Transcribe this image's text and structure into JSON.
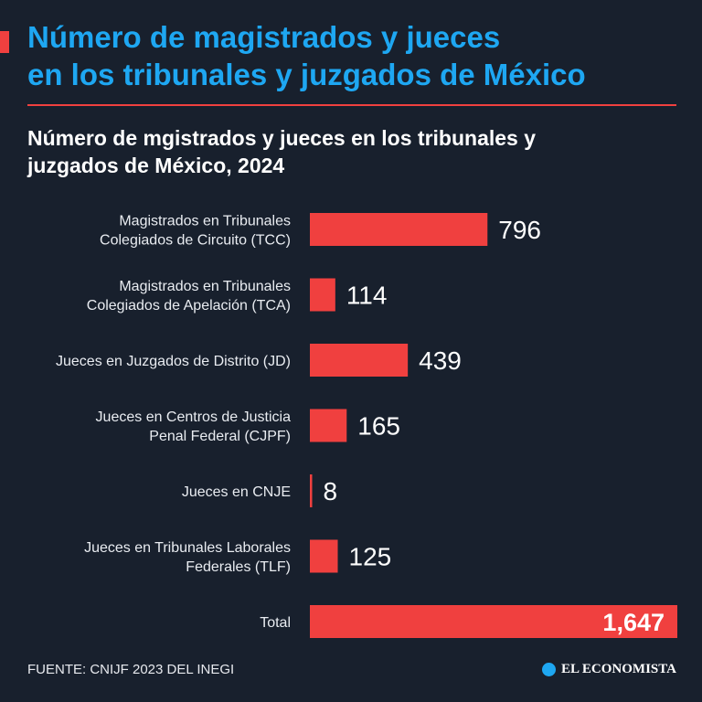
{
  "header": {
    "title_line1": "Número de magistrados y jueces",
    "title_line2": "en los tribunales y juzgados de México",
    "accent_color": "#f0403f",
    "title_color": "#1ea7f2"
  },
  "chart_data": {
    "type": "bar",
    "orientation": "horizontal",
    "title_line1": "Número de mgistrados y jueces en los tribunales y",
    "title_line2": "juzgados de México, 2024",
    "categories": [
      [
        "Magistrados en Tribunales",
        "Colegiados de Circuito (TCC)"
      ],
      [
        "Magistrados en Tribunales",
        "Colegiados de Apelación (TCA)"
      ],
      [
        "Jueces en Juzgados de Distrito (JD)"
      ],
      [
        "Jueces en Centros de Justicia",
        "Penal Federal (CJPF)"
      ],
      [
        "Jueces en CNJE"
      ],
      [
        "Jueces en Tribunales Laborales",
        "Federales (TLF)"
      ],
      [
        "Total"
      ]
    ],
    "values": [
      796,
      114,
      439,
      165,
      8,
      125,
      1647
    ],
    "value_labels": [
      "796",
      "114",
      "439",
      "165",
      "8",
      "125",
      "1,647"
    ],
    "xlim": [
      0,
      1647
    ],
    "bar_color": "#f0403f",
    "grid": false,
    "legend": false
  },
  "footer": {
    "source": "FUENTE: CNIJF 2023 DEL INEGI",
    "brand": "EL ECONOMISTA",
    "brand_icon": "el-economista-logo-icon"
  }
}
